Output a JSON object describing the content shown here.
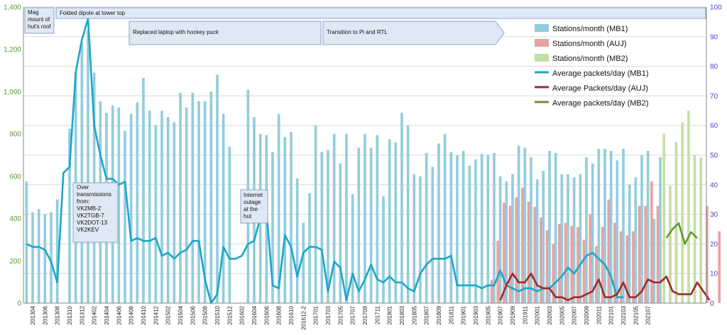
{
  "chart_data": {
    "type": "bar",
    "ylim_left": [
      0,
      1400
    ],
    "ylim_right": [
      0,
      100
    ],
    "y_ticks_left": [
      "0",
      "200",
      "400",
      "600",
      "800",
      "1,000",
      "1,200",
      "1,400"
    ],
    "y_ticks_right": [
      "0",
      "10",
      "20",
      "30",
      "40",
      "50",
      "60",
      "70",
      "80",
      "90",
      "100"
    ],
    "x_tick_labels": [
      "201304",
      "201306",
      "201308",
      "201310",
      "201312",
      "201402",
      "201404",
      "201406",
      "201408",
      "201410",
      "201412",
      "201502",
      "201504",
      "201506",
      "201508",
      "201510",
      "201512",
      "201602",
      "201604",
      "201606",
      "201608",
      "201610",
      "201612-2",
      "201701",
      "201703",
      "201705",
      "201707",
      "201709",
      "201711",
      "201801",
      "201803",
      "201805",
      "201807",
      "201809",
      "201811",
      "201901",
      "201903",
      "201905",
      "201907",
      "201909",
      "201911",
      "202001",
      "202003",
      "202005",
      "202007",
      "202009",
      "202011",
      "202101",
      "202103",
      "202105",
      "202107"
    ],
    "grid": true,
    "legend_position": "top-right",
    "colors": {
      "mb1_bar": "#92cddc",
      "auj_bar": "#e6a3a2",
      "mb2_bar": "#c4dfa3",
      "mb1_line": "#1ba7c9",
      "auj_line": "#9b2b2b",
      "mb2_line": "#5f9a2c",
      "axis_left": "#5e9a3a",
      "axis_right": "#5a40c0",
      "banner_fill": "#dfe8f5",
      "banner_stroke": "#8aa4c8"
    },
    "series": [
      {
        "name": "Stations/month (MB1)",
        "kind": "bar",
        "axis": "left",
        "values": [
          575,
          430,
          445,
          420,
          430,
          490,
          null,
          825,
          1090,
          1230,
          1290,
          1090,
          955,
          900,
          935,
          925,
          815,
          895,
          950,
          1065,
          910,
          840,
          910,
          880,
          855,
          995,
          925,
          995,
          955,
          955,
          1000,
          1080,
          895,
          740,
          null,
          null,
          1010,
          880,
          800,
          795,
          715,
          895,
          785,
          810,
          590,
          380,
          520,
          840,
          715,
          725,
          800,
          660,
          800,
          515,
          735,
          800,
          735,
          795,
          505,
          775,
          760,
          900,
          840,
          610,
          600,
          710,
          645,
          755,
          800,
          715,
          700,
          720,
          650,
          680,
          705,
          700,
          710,
          600,
          575,
          610,
          745,
          735,
          690,
          585,
          625,
          720,
          710,
          610,
          610,
          595,
          610,
          690,
          660,
          730,
          730,
          720,
          675,
          730,
          560,
          595,
          700,
          720,
          400,
          690
        ]
      },
      {
        "name": "Stations/month (AUJ)",
        "kind": "bar",
        "axis": "left",
        "start_index": 76,
        "values": [
          110,
          295,
          475,
          460,
          500,
          545,
          480,
          455,
          405,
          345,
          280,
          375,
          380,
          365,
          360,
          300,
          420,
          270,
          360,
          490,
          380,
          340,
          320,
          340,
          460,
          460,
          575,
          460,
          360,
          460,
          460,
          null,
          null,
          null,
          null,
          460,
          null,
          340
        ]
      },
      {
        "name": "Stations/month (MB2)",
        "kind": "bar",
        "axis": "left",
        "start_index": 104,
        "values": [
          800,
          555,
          760,
          855,
          910,
          700,
          690
        ]
      },
      {
        "name": "Average packets/day (MB1)",
        "kind": "line",
        "axis": "right",
        "values": [
          20,
          19,
          19,
          18,
          14,
          7,
          44,
          46,
          78,
          89,
          96,
          60,
          50,
          42,
          42,
          40,
          41,
          21,
          22,
          21,
          21,
          22,
          16,
          17,
          15,
          17,
          18,
          21,
          21,
          8,
          0,
          3,
          19,
          15,
          15,
          16,
          20,
          21,
          29,
          31,
          6,
          5,
          23,
          19,
          9,
          17,
          19,
          19,
          18,
          4,
          14,
          12,
          1,
          10,
          4,
          8,
          13,
          8,
          7,
          9,
          7,
          7,
          5,
          4,
          10,
          13,
          15,
          15,
          15,
          16,
          6,
          6,
          6,
          6,
          5,
          6,
          6,
          11,
          6,
          5,
          4,
          5,
          5,
          4,
          5,
          5,
          7,
          9,
          12,
          10,
          13,
          16,
          17,
          15,
          13,
          9,
          2,
          2
        ]
      },
      {
        "name": "Average Packets/day (AUJ)",
        "kind": "line",
        "axis": "right",
        "start_index": 77,
        "values": [
          1,
          6,
          10,
          7,
          7,
          10,
          6,
          5,
          5,
          2,
          2,
          1,
          2,
          2,
          3,
          4,
          8,
          2,
          2,
          3,
          7,
          2,
          2,
          4,
          8,
          7,
          7,
          9,
          4,
          3,
          3,
          3,
          7,
          4,
          1
        ]
      },
      {
        "name": "Average packets/day (MB2)",
        "kind": "line",
        "axis": "right",
        "start_index": 104,
        "values": [
          22,
          25,
          27,
          20,
          24,
          22
        ]
      }
    ],
    "annotations": [
      {
        "id": "mag-mount",
        "lines": [
          "Mag",
          "mount of",
          "hut's roof"
        ]
      },
      {
        "id": "folded-dipole",
        "lines": [
          "Folded dipole at tower top"
        ]
      },
      {
        "id": "hockey-puck",
        "lines": [
          "Replaced laptop with hockey puck"
        ]
      },
      {
        "id": "pi-rtl",
        "lines": [
          "Transition to Pi and RTL"
        ]
      },
      {
        "id": "over-tx",
        "lines": [
          "Over",
          "transmissions",
          "from:",
          "VK2MB-2",
          "VK2TGB-7",
          "VK2DOT-13",
          "VK2KEV"
        ]
      },
      {
        "id": "internet-outage",
        "lines": [
          "Internet",
          "outage",
          "at the",
          "hut"
        ]
      }
    ]
  }
}
